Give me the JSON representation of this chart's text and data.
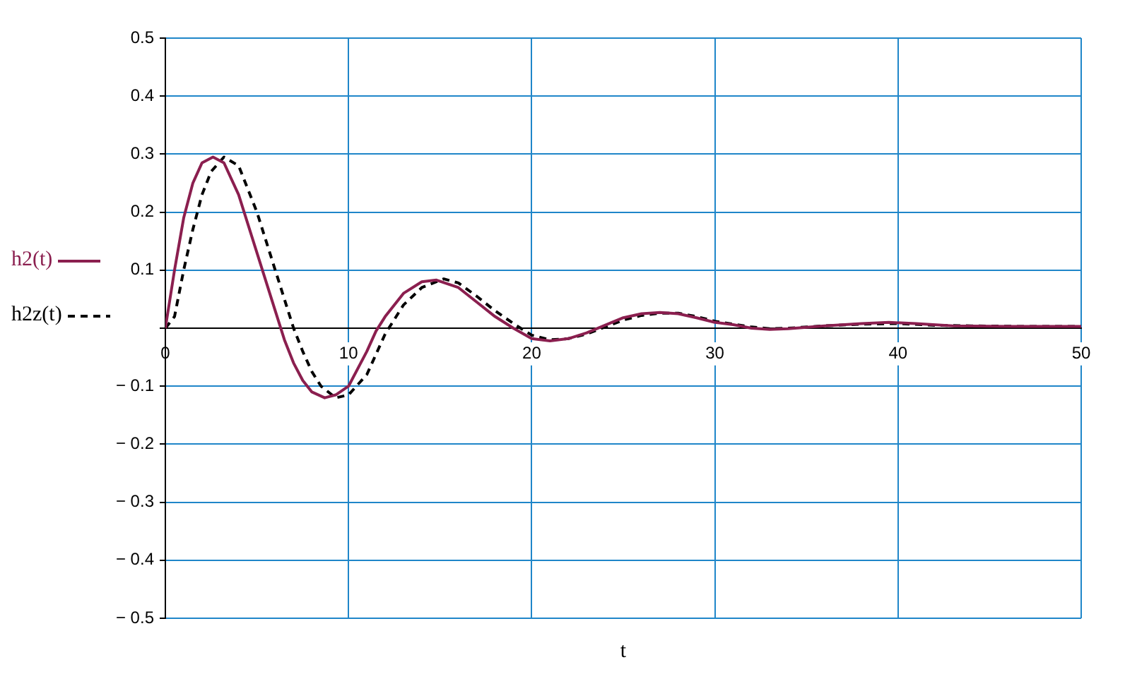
{
  "chart_data": {
    "type": "line",
    "xlabel": "t",
    "xlim": [
      0,
      50
    ],
    "xticks": [
      0,
      10,
      20,
      30,
      40,
      50
    ],
    "ylim": [
      -0.5,
      0.5
    ],
    "yticks": [
      {
        "value": -0.5,
        "label": "− 0.5"
      },
      {
        "value": -0.4,
        "label": "− 0.4"
      },
      {
        "value": -0.3,
        "label": "− 0.3"
      },
      {
        "value": -0.2,
        "label": "− 0.2"
      },
      {
        "value": -0.1,
        "label": "− 0.1"
      },
      {
        "value": 0,
        "label": null
      },
      0.1,
      0.2,
      0.3,
      0.4,
      0.5
    ],
    "grid": true,
    "legend": "left",
    "marker": "none",
    "series": [
      {
        "name": "h2(t)",
        "color": "#8b1f4f",
        "line_style": "solid",
        "x": [
          0,
          0.5,
          1,
          1.5,
          2,
          2.6,
          3.2,
          4,
          5,
          6,
          6.5,
          7,
          7.5,
          8,
          8.7,
          9.3,
          10,
          11,
          11.5,
          12,
          13,
          14,
          14.8,
          16,
          17,
          18,
          19,
          20,
          21,
          22,
          23,
          24,
          25,
          26,
          27,
          28,
          29,
          30,
          31,
          32,
          33,
          34,
          36,
          38,
          39.5,
          41,
          43,
          46,
          50
        ],
        "values": [
          0,
          0.1,
          0.19,
          0.25,
          0.285,
          0.295,
          0.285,
          0.23,
          0.13,
          0.03,
          -0.02,
          -0.06,
          -0.09,
          -0.11,
          -0.12,
          -0.115,
          -0.1,
          -0.04,
          -0.005,
          0.02,
          0.06,
          0.08,
          0.083,
          0.07,
          0.045,
          0.02,
          0,
          -0.018,
          -0.022,
          -0.018,
          -0.008,
          0.005,
          0.018,
          0.025,
          0.027,
          0.025,
          0.018,
          0.01,
          0.006,
          0,
          -0.002,
          -0.001,
          0.004,
          0.008,
          0.01,
          0.008,
          0.004,
          0.003,
          0.003
        ]
      },
      {
        "name": "h2z(t)",
        "color": "#000000",
        "line_style": "dashed",
        "x": [
          0,
          0.5,
          1,
          1.5,
          2,
          2.5,
          3.2,
          4,
          5,
          6,
          7,
          7.5,
          8,
          8.5,
          9.3,
          10,
          11,
          12,
          13,
          14,
          15.2,
          16,
          17,
          18,
          19,
          20,
          21,
          22,
          23,
          24,
          25,
          26,
          27,
          28,
          29,
          30,
          31,
          32,
          33,
          34,
          36,
          38,
          40,
          42,
          44,
          47,
          50
        ],
        "values": [
          0,
          0.02,
          0.1,
          0.17,
          0.23,
          0.27,
          0.295,
          0.28,
          0.2,
          0.1,
          0,
          -0.04,
          -0.075,
          -0.1,
          -0.12,
          -0.115,
          -0.08,
          -0.01,
          0.04,
          0.07,
          0.085,
          0.078,
          0.055,
          0.03,
          0.008,
          -0.012,
          -0.02,
          -0.018,
          -0.01,
          0.002,
          0.014,
          0.022,
          0.026,
          0.026,
          0.02,
          0.012,
          0.007,
          0.002,
          -0.001,
          0,
          0.004,
          0.007,
          0.008,
          0.005,
          0.004,
          0.003,
          0.003
        ]
      }
    ]
  }
}
